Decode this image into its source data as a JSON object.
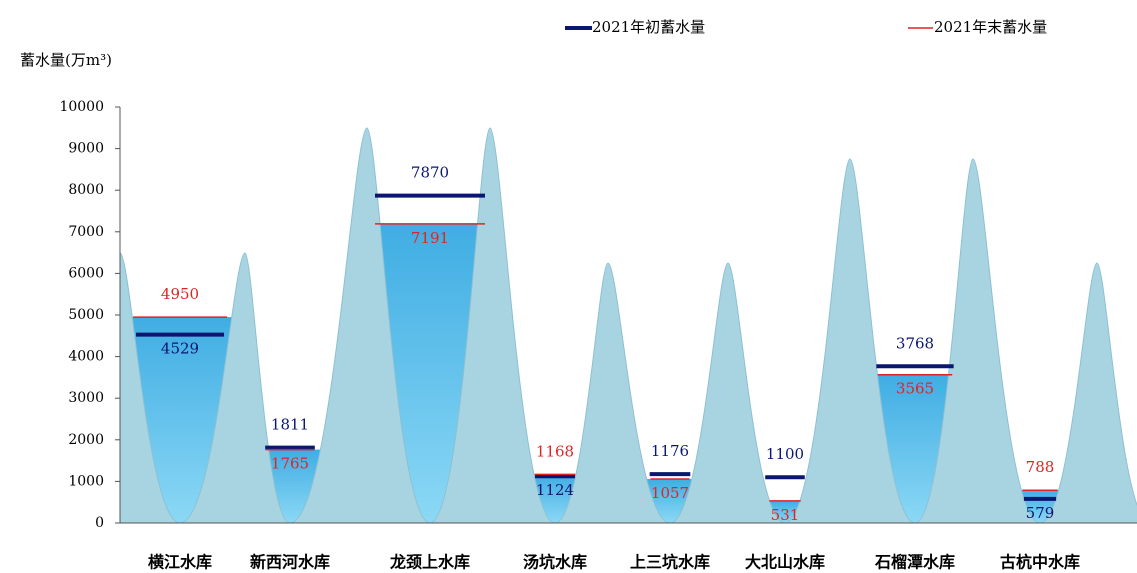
{
  "chart_data": {
    "type": "reservoir-levels",
    "ylabel": "蓄水量(万m³)",
    "categories": [
      "横江水库",
      "新西河水库",
      "龙颈上水库",
      "汤坑水库",
      "上三坑水库",
      "大北山水库",
      "石榴潭水库",
      "古杭中水库"
    ],
    "series": [
      {
        "name": "2021年初蓄水量",
        "color": "#0a1670",
        "values": [
          4529,
          1811,
          7870,
          1124,
          1176,
          1100,
          3768,
          579
        ]
      },
      {
        "name": "2021年末蓄水量",
        "color": "#e02424",
        "values": [
          4950,
          1765,
          7191,
          1168,
          1057,
          531,
          3565,
          788
        ]
      }
    ],
    "ylim": [
      0,
      10000
    ],
    "yticks": [
      0,
      1000,
      2000,
      3000,
      4000,
      5000,
      6000,
      7000,
      8000,
      9000,
      10000
    ]
  }
}
